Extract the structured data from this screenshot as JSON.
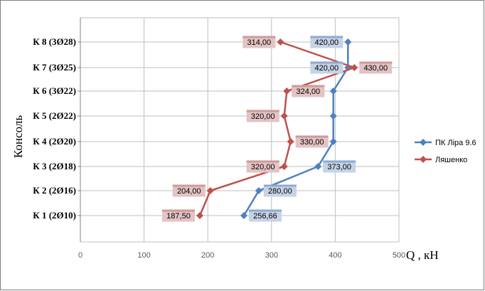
{
  "chart_data": {
    "type": "line",
    "orientation": "horizontal-values",
    "xlabel": "Q , кН",
    "ylabel": "Консоль",
    "xlim": [
      0,
      500
    ],
    "x_ticks": [
      "0",
      "100",
      "200",
      "300",
      "400",
      "500"
    ],
    "categories": [
      "К 1 (2Ø10)",
      "К 2 (2Ø16)",
      "К 3 (2Ø18)",
      "К 4 (2Ø20)",
      "К 5 (2Ø22)",
      "К 6 (3Ø22)",
      "К 7 (3Ø25)",
      "К 8 (3Ø28)"
    ],
    "grid": true,
    "legend_position": "right",
    "series": [
      {
        "name": "ПК Ліра 9.6",
        "color": "#4f81bd",
        "values": [
          256.66,
          280,
          373,
          397,
          397,
          397,
          420,
          420
        ],
        "labels": [
          "256,66",
          "280,00",
          "373,00",
          "",
          "",
          "",
          "420,00",
          "420,00"
        ]
      },
      {
        "name": "Ляшенко",
        "color": "#c0504d",
        "values": [
          187.5,
          204,
          320,
          330,
          320,
          324,
          430,
          314
        ],
        "labels": [
          "187,50",
          "204,00",
          "320,00",
          "330,00",
          "320,00",
          "324,00",
          "430,00",
          "314,00"
        ]
      }
    ]
  }
}
